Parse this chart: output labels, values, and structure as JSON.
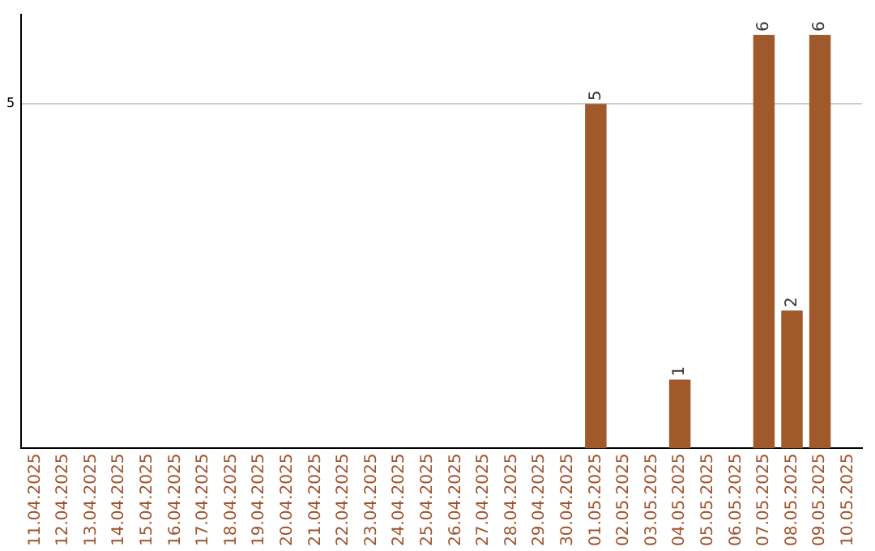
{
  "chart_data": {
    "type": "bar",
    "categories": [
      "11.04.2025",
      "12.04.2025",
      "13.04.2025",
      "14.04.2025",
      "15.04.2025",
      "16.04.2025",
      "17.04.2025",
      "18.04.2025",
      "19.04.2025",
      "20.04.2025",
      "21.04.2025",
      "22.04.2025",
      "23.04.2025",
      "24.04.2025",
      "25.04.2025",
      "26.04.2025",
      "27.04.2025",
      "28.04.2025",
      "29.04.2025",
      "30.04.2025",
      "01.05.2025",
      "02.05.2025",
      "03.05.2025",
      "04.05.2025",
      "05.05.2025",
      "06.05.2025",
      "07.05.2025",
      "08.05.2025",
      "09.05.2025",
      "10.05.2025"
    ],
    "values": [
      null,
      null,
      null,
      null,
      null,
      null,
      null,
      null,
      null,
      null,
      null,
      null,
      null,
      null,
      null,
      null,
      null,
      null,
      null,
      null,
      5,
      null,
      null,
      1,
      null,
      null,
      6,
      2,
      6,
      null
    ],
    "color": "#a0592a",
    "ylim": [
      0,
      6.3
    ],
    "yticks": [
      5
    ],
    "grid": "y",
    "data_labels": true
  }
}
